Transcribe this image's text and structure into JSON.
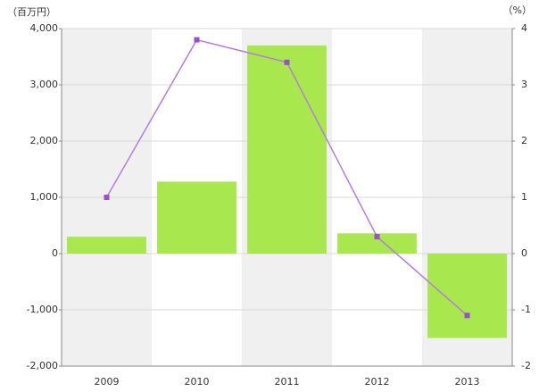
{
  "chart_data": {
    "type": "bar-line",
    "y_unit": "（百万円）",
    "y2_unit": "（%）",
    "categories": [
      "2009",
      "2010",
      "2011",
      "2012",
      "2013"
    ],
    "series": [
      {
        "type": "bar",
        "color": "#a8e84e",
        "values": [
          300,
          1280,
          3700,
          360,
          -1500
        ]
      },
      {
        "type": "line",
        "color": "#b57edc",
        "marker_color": "#9b4fcf",
        "axis": "y2",
        "values": [
          1.0,
          3.8,
          3.4,
          0.3,
          -1.1
        ]
      }
    ],
    "ylim": [
      -2000,
      4000
    ],
    "yticks": [
      {
        "value": -2000,
        "label": "-2,000"
      },
      {
        "value": -1000,
        "label": "-1,000"
      },
      0,
      {
        "value": 1000,
        "label": "1,000"
      },
      {
        "value": 2000,
        "label": "2,000"
      },
      {
        "value": 3000,
        "label": "3,000"
      },
      {
        "value": 4000,
        "label": "4,000"
      }
    ],
    "y2lim": [
      -2,
      4
    ],
    "y2ticks": [
      -2,
      -1,
      0,
      1,
      2,
      3,
      4
    ],
    "grid": true
  }
}
